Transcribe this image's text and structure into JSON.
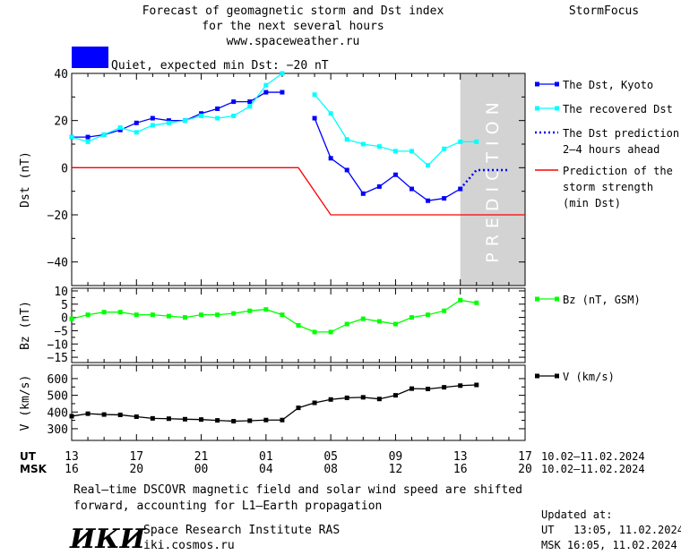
{
  "header": {
    "title_line1": "Forecast of geomagnetic storm and Dst index",
    "title_line2": "for the next several hours",
    "site": "www.spaceweather.ru",
    "brand": "StormFocus",
    "status_text": "Quiet, expected min Dst: −20 nT",
    "status_color": "#0000ff"
  },
  "prediction_label": "PREDICTION",
  "chart_data": [
    {
      "type": "line",
      "ylabel": "Dst (nT)",
      "ylim": [
        -50,
        40
      ],
      "yticks": [
        40,
        20,
        0,
        -20,
        -40
      ],
      "x_range_hours": [
        0,
        28
      ],
      "prediction_zone_hours": [
        24,
        28
      ],
      "series": [
        {
          "name": "The Dst, Kyoto",
          "color": "#0000ff",
          "x": [
            0,
            1,
            2,
            3,
            4,
            5,
            6,
            7,
            8,
            9,
            10,
            11,
            12,
            13,
            15,
            16,
            17,
            18,
            19,
            20,
            21,
            22,
            23,
            24
          ],
          "y": [
            13,
            13,
            14,
            16,
            19,
            21,
            20,
            20,
            23,
            25,
            28,
            28,
            32,
            32,
            21,
            4,
            -1,
            -11,
            -8,
            -3,
            -9,
            -14,
            -13,
            -9
          ]
        },
        {
          "name": "The recovered Dst",
          "color": "#00ffff",
          "x": [
            0,
            1,
            2,
            3,
            4,
            5,
            6,
            7,
            8,
            9,
            10,
            11,
            12,
            13,
            15,
            16,
            17,
            18,
            19,
            20,
            21,
            22,
            23,
            24,
            25
          ],
          "y": [
            13,
            11,
            14,
            17,
            15,
            18,
            19,
            20,
            22,
            21,
            22,
            26,
            35,
            40,
            31,
            23,
            12,
            10,
            9,
            7,
            7,
            1,
            8,
            11,
            11
          ]
        },
        {
          "name": "The Dst prediction 2–4 hours ahead",
          "color": "#0000ff",
          "x": [
            24,
            25,
            26,
            27
          ],
          "y": [
            -9,
            -1,
            -1,
            -1
          ]
        },
        {
          "name": "Prediction of the storm strength (min Dst)",
          "color": "#ff0000",
          "x": [
            0,
            14,
            16,
            28
          ],
          "y": [
            0,
            0,
            -20,
            -20
          ]
        }
      ],
      "legend": [
        {
          "lines": [
            "The Dst, Kyoto"
          ],
          "style": "marker",
          "color": "#0000ff"
        },
        {
          "lines": [
            "The recovered Dst"
          ],
          "style": "marker",
          "color": "#00ffff"
        },
        {
          "lines": [
            "The Dst prediction",
            "2–4 hours ahead"
          ],
          "style": "dotted",
          "color": "#0000ff"
        },
        {
          "lines": [
            "Prediction of the",
            "storm strength",
            "(min Dst)"
          ],
          "style": "line",
          "color": "#ff0000"
        }
      ]
    },
    {
      "type": "line",
      "ylabel": "Bz (nT)",
      "ylim": [
        -17,
        11
      ],
      "yticks": [
        10,
        5,
        0,
        -5,
        -10,
        -15
      ],
      "series": [
        {
          "name": "Bz (nT, GSM)",
          "color": "#00ff00",
          "x": [
            0,
            1,
            2,
            3,
            4,
            5,
            6,
            7,
            8,
            9,
            10,
            11,
            12,
            13,
            14,
            15,
            16,
            17,
            18,
            19,
            20,
            21,
            22,
            23,
            24,
            25
          ],
          "y": [
            -0.5,
            1,
            2,
            2,
            1,
            1,
            0.5,
            0,
            1,
            1,
            1.5,
            2.5,
            3,
            1,
            -3,
            -5.5,
            -5.5,
            -2.5,
            -0.5,
            -1.5,
            -2.5,
            0,
            1,
            2.5,
            6.5,
            5.5
          ]
        }
      ],
      "legend": [
        {
          "lines": [
            "Bz (nT, GSM)"
          ],
          "style": "marker",
          "color": "#00ff00"
        }
      ]
    },
    {
      "type": "line",
      "ylabel": "V (km/s)",
      "ylim": [
        230,
        680
      ],
      "yticks": [
        600,
        500,
        400,
        300
      ],
      "series": [
        {
          "name": "V (km/s)",
          "color": "#000000",
          "x": [
            0,
            1,
            2,
            3,
            4,
            5,
            6,
            7,
            8,
            9,
            10,
            11,
            12,
            13,
            14,
            15,
            16,
            17,
            18,
            19,
            20,
            21,
            22,
            23,
            24,
            25
          ],
          "y": [
            375,
            390,
            385,
            383,
            372,
            362,
            360,
            357,
            355,
            350,
            345,
            348,
            352,
            352,
            425,
            455,
            475,
            485,
            488,
            478,
            500,
            540,
            538,
            548,
            558,
            562
          ]
        }
      ],
      "legend": [
        {
          "lines": [
            "V (km/s)"
          ],
          "style": "marker",
          "color": "#000000"
        }
      ]
    }
  ],
  "xaxis": {
    "ut_label": "UT",
    "msk_label": "MSK",
    "ut_ticks": [
      "13",
      "17",
      "21",
      "01",
      "05",
      "09",
      "13",
      "17"
    ],
    "msk_ticks": [
      "16",
      "20",
      "00",
      "04",
      "08",
      "12",
      "16",
      "20"
    ],
    "date_range_ut": "10.02–11.02.2024",
    "date_range_msk": "10.02–11.02.2024"
  },
  "footer": {
    "note_line1": "Real–time DSCOVR magnetic field and solar wind speed are shifted",
    "note_line2": "forward, accounting for L1–Earth propagation",
    "logo": "ИКИ",
    "institute": "Space Research Institute RAS",
    "url": "iki.cosmos.ru",
    "updated_label": "Updated at:",
    "updated_ut": "UT   13:05, 11.02.2024",
    "updated_msk": "MSK 16:05, 11.02.2024"
  }
}
